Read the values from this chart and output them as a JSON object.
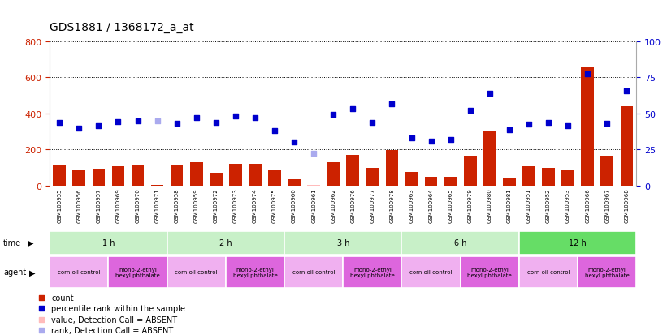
{
  "title": "GDS1881 / 1368172_a_at",
  "samples": [
    "GSM100955",
    "GSM100956",
    "GSM100957",
    "GSM100969",
    "GSM100970",
    "GSM100971",
    "GSM100958",
    "GSM100959",
    "GSM100972",
    "GSM100973",
    "GSM100974",
    "GSM100975",
    "GSM100960",
    "GSM100961",
    "GSM100962",
    "GSM100976",
    "GSM100977",
    "GSM100978",
    "GSM100963",
    "GSM100964",
    "GSM100965",
    "GSM100979",
    "GSM100980",
    "GSM100981",
    "GSM100951",
    "GSM100952",
    "GSM100953",
    "GSM100966",
    "GSM100967",
    "GSM100968"
  ],
  "bar_values": [
    110,
    90,
    95,
    105,
    110,
    5,
    110,
    130,
    70,
    120,
    120,
    85,
    35,
    5,
    130,
    170,
    100,
    195,
    75,
    50,
    50,
    165,
    300,
    45,
    105,
    100,
    90,
    660,
    165,
    440
  ],
  "bar_absent": [
    false,
    false,
    false,
    false,
    false,
    false,
    false,
    false,
    false,
    false,
    false,
    false,
    false,
    true,
    false,
    false,
    false,
    false,
    false,
    false,
    false,
    false,
    false,
    false,
    false,
    false,
    false,
    false,
    false,
    false
  ],
  "rank_values": [
    350,
    320,
    330,
    355,
    360,
    360,
    345,
    375,
    350,
    385,
    375,
    305,
    240,
    180,
    395,
    425,
    350,
    455,
    265,
    245,
    255,
    415,
    510,
    310,
    340,
    350,
    330,
    620,
    345,
    525
  ],
  "rank_absent": [
    false,
    false,
    false,
    false,
    false,
    true,
    false,
    false,
    false,
    false,
    false,
    false,
    false,
    true,
    false,
    false,
    false,
    false,
    false,
    false,
    false,
    false,
    false,
    false,
    false,
    false,
    false,
    false,
    false,
    false
  ],
  "time_groups": [
    {
      "label": "1 h",
      "start": 0,
      "end": 6,
      "color": "#c8f0c8"
    },
    {
      "label": "2 h",
      "start": 6,
      "end": 12,
      "color": "#c8f0c8"
    },
    {
      "label": "3 h",
      "start": 12,
      "end": 18,
      "color": "#c8f0c8"
    },
    {
      "label": "6 h",
      "start": 18,
      "end": 24,
      "color": "#c8f0c8"
    },
    {
      "label": "12 h",
      "start": 24,
      "end": 30,
      "color": "#66dd66"
    }
  ],
  "agent_groups": [
    {
      "label": "corn oil control",
      "start": 0,
      "end": 3,
      "color": "#f0b0f0"
    },
    {
      "label": "mono-2-ethyl\nhexyl phthalate",
      "start": 3,
      "end": 6,
      "color": "#dd66dd"
    },
    {
      "label": "corn oil control",
      "start": 6,
      "end": 9,
      "color": "#f0b0f0"
    },
    {
      "label": "mono-2-ethyl\nhexyl phthalate",
      "start": 9,
      "end": 12,
      "color": "#dd66dd"
    },
    {
      "label": "corn oil control",
      "start": 12,
      "end": 15,
      "color": "#f0b0f0"
    },
    {
      "label": "mono-2-ethyl\nhexyl phthalate",
      "start": 15,
      "end": 18,
      "color": "#dd66dd"
    },
    {
      "label": "corn oil control",
      "start": 18,
      "end": 21,
      "color": "#f0b0f0"
    },
    {
      "label": "mono-2-ethyl\nhexyl phthalate",
      "start": 21,
      "end": 24,
      "color": "#dd66dd"
    },
    {
      "label": "corn oil control",
      "start": 24,
      "end": 27,
      "color": "#f0b0f0"
    },
    {
      "label": "mono-2-ethyl\nhexyl phthalate",
      "start": 27,
      "end": 30,
      "color": "#dd66dd"
    }
  ],
  "ylim_left": [
    0,
    800
  ],
  "ylim_right": [
    0,
    100
  ],
  "yticks_left": [
    0,
    200,
    400,
    600,
    800
  ],
  "yticks_right": [
    0,
    25,
    50,
    75,
    100
  ],
  "bar_color": "#cc2200",
  "bar_absent_color": "#ffbbbb",
  "rank_color": "#0000cc",
  "rank_absent_color": "#aaaaee",
  "sample_bg": "#cccccc",
  "plot_bg": "#ffffff",
  "title_fontsize": 10,
  "axis_fontsize": 8,
  "sample_fontsize": 5,
  "annot_fontsize": 7,
  "legend_fontsize": 7
}
